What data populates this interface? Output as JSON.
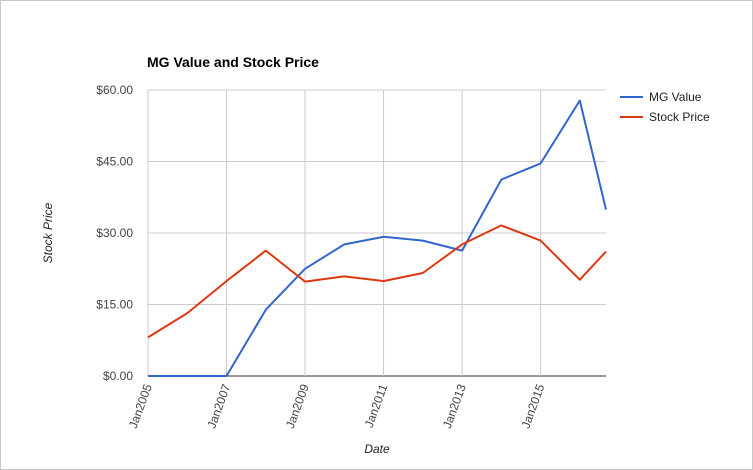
{
  "chart_data": {
    "type": "line",
    "title": "MG Value and Stock Price",
    "xlabel": "Date",
    "ylabel": "Stock Price",
    "x": [
      "2005-01",
      "2006-01",
      "2007-01",
      "2008-01",
      "2009-01",
      "2010-01",
      "2011-01",
      "2012-01",
      "2013-01",
      "2014-01",
      "2015-01",
      "2016-01",
      "2016-09"
    ],
    "x_ticks": [
      "Jan2005",
      "Jan2007",
      "Jan2009",
      "Jan2011",
      "Jan2013",
      "Jan2015"
    ],
    "y_ticks": [
      "$0.00",
      "$15.00",
      "$30.00",
      "$45.00",
      "$60.00"
    ],
    "ylim": [
      0,
      60
    ],
    "grid": true,
    "legend_position": "right",
    "series": [
      {
        "name": "MG Value",
        "color": "#3366cc",
        "values": [
          0,
          0,
          0,
          13.9,
          22.5,
          27.6,
          29.2,
          28.4,
          26.3,
          41.2,
          44.6,
          57.8,
          34.9
        ]
      },
      {
        "name": "Stock Price",
        "color": "#dc3912",
        "values": [
          8.1,
          13.2,
          19.9,
          26.3,
          19.8,
          20.9,
          19.9,
          21.6,
          27.6,
          31.6,
          28.4,
          20.2,
          26.1
        ]
      }
    ]
  }
}
